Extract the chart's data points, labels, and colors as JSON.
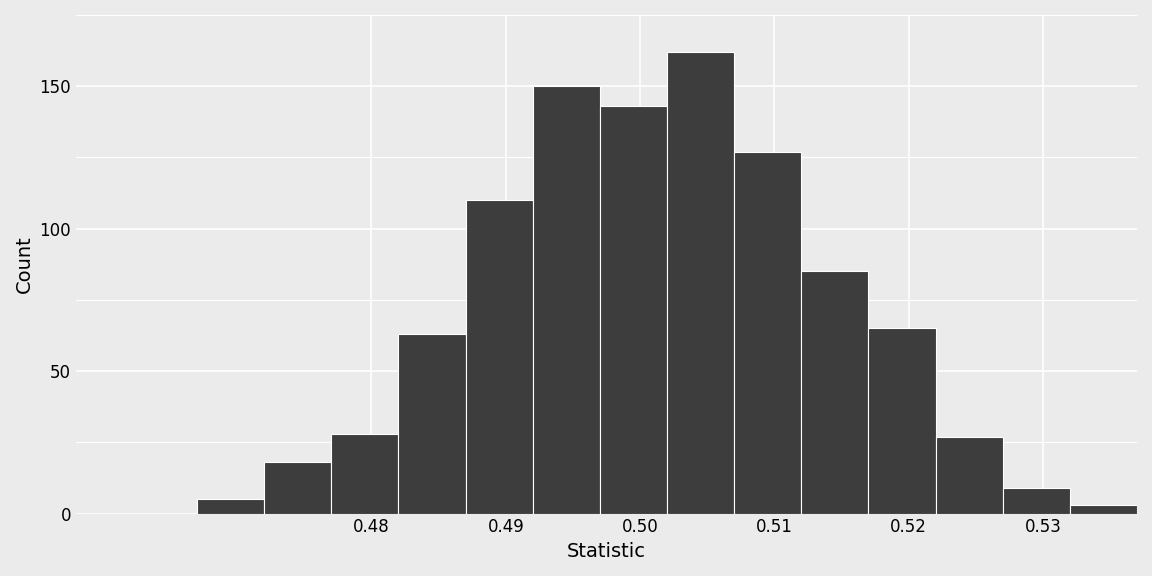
{
  "bar_left_edges": [
    0.467,
    0.472,
    0.477,
    0.482,
    0.487,
    0.492,
    0.497,
    0.502,
    0.507,
    0.512,
    0.517,
    0.522,
    0.527,
    0.532
  ],
  "bar_heights": [
    5,
    18,
    28,
    63,
    110,
    150,
    143,
    162,
    127,
    85,
    65,
    27,
    9,
    3
  ],
  "bar_width": 0.005,
  "bar_color": "#3d3d3d",
  "bar_edgecolor": "#ffffff",
  "bar_linewidth": 0.8,
  "xlabel": "Statistic",
  "ylabel": "Count",
  "xlim": [
    0.458,
    0.537
  ],
  "ylim": [
    0,
    175
  ],
  "xticks": [
    0.48,
    0.49,
    0.5,
    0.51,
    0.52,
    0.53
  ],
  "yticks": [
    0,
    50,
    100,
    150
  ],
  "background_color": "#ebebeb",
  "grid_color": "#ffffff",
  "label_fontsize": 14,
  "tick_fontsize": 12
}
